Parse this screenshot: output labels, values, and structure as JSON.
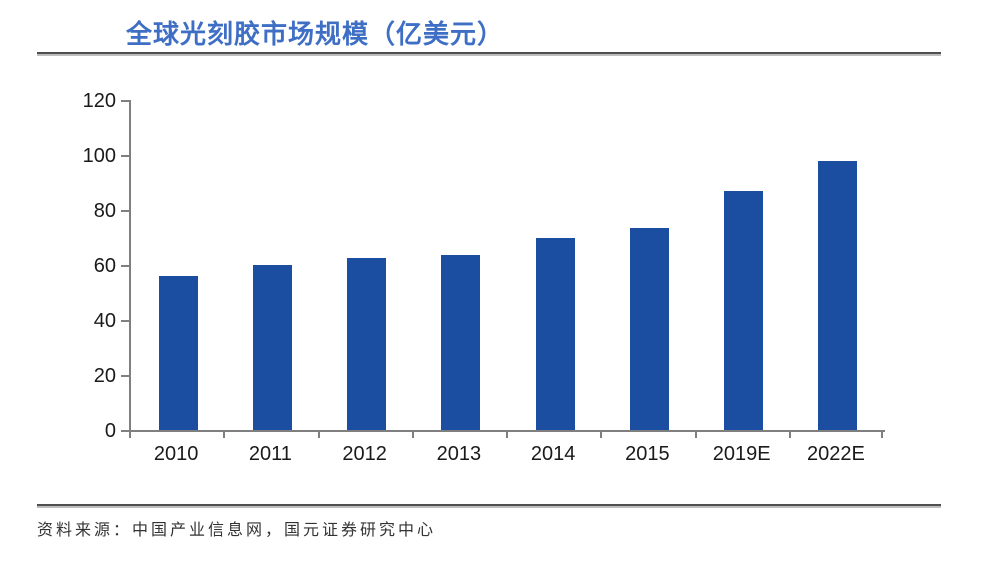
{
  "header": {
    "title": "全球光刻胶市场规模（亿美元）"
  },
  "footer": {
    "source": "资料来源：中国产业信息网，国元证券研究中心"
  },
  "colors": {
    "bar": "#1B4DA1",
    "title_text": "#3F6FC5",
    "axis": "#7f7f7f",
    "rule": "#4f4f4f",
    "tick_label": "#1a1a1a"
  },
  "chart_data": {
    "type": "bar",
    "title": "全球光刻胶市场规模（亿美元）",
    "categories": [
      "2010",
      "2011",
      "2012",
      "2013",
      "2014",
      "2015",
      "2019E",
      "2022E"
    ],
    "values": [
      56,
      60,
      62.5,
      63.5,
      70,
      73.5,
      87,
      98
    ],
    "xlabel": "",
    "ylabel": "",
    "ylim": [
      0,
      120
    ],
    "yticks": [
      0,
      20,
      40,
      60,
      80,
      100,
      120
    ],
    "grid": false,
    "legend_position": "none",
    "bar_color": "#1B4DA1",
    "unit": "亿美元",
    "source": "资料来源：中国产业信息网，国元证券研究中心"
  }
}
